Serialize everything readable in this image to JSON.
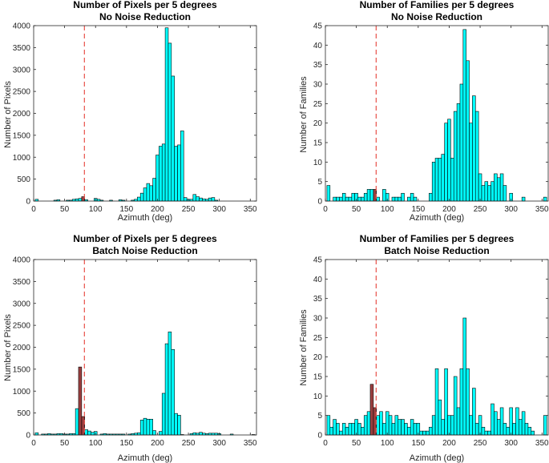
{
  "colors": {
    "bar": "#00ffff",
    "highlight": "#9e4040",
    "edge": "#000000",
    "ref_line": "#e8524a"
  },
  "chart_data": [
    {
      "type": "bar",
      "title": "Number of Pixels per 5 degrees",
      "subtitle": "No Noise Reduction",
      "xlabel": "Azimuth (deg)",
      "ylabel": "Number of Pixels",
      "xlim": [
        0,
        360
      ],
      "ylim": [
        0,
        4000
      ],
      "xticks": [
        "0",
        "50",
        "100",
        "150",
        "200",
        "250",
        "300",
        "350"
      ],
      "yticks": [
        "0",
        "500",
        "1000",
        "1500",
        "2000",
        "2500",
        "3000",
        "3500",
        "4000"
      ],
      "grid": false,
      "reference_line_x": 82,
      "bin_width": 5,
      "x": [
        5,
        35,
        40,
        55,
        60,
        65,
        70,
        75,
        80,
        85,
        100,
        105,
        110,
        125,
        140,
        145,
        160,
        165,
        170,
        175,
        180,
        185,
        190,
        195,
        200,
        205,
        210,
        215,
        220,
        225,
        230,
        235,
        240,
        245,
        250,
        255,
        260,
        265,
        270,
        275,
        280,
        285,
        290,
        295
      ],
      "values": [
        40,
        20,
        30,
        20,
        20,
        40,
        50,
        60,
        100,
        30,
        60,
        40,
        20,
        20,
        30,
        20,
        20,
        40,
        90,
        180,
        300,
        400,
        350,
        520,
        1050,
        1250,
        1300,
        3950,
        3600,
        2850,
        1250,
        1280,
        1600,
        80,
        40,
        40,
        150,
        100,
        70,
        50,
        40,
        70,
        80,
        20
      ],
      "highlight_x": [
        80
      ]
    },
    {
      "type": "bar",
      "title": "Number of Families per 5 degrees",
      "subtitle": "No Noise Reduction",
      "xlabel": "Azimuth (deg)",
      "ylabel": "Number of Families",
      "xlim": [
        0,
        360
      ],
      "ylim": [
        0,
        45
      ],
      "xticks": [
        "0",
        "50",
        "100",
        "150",
        "200",
        "250",
        "300",
        "350"
      ],
      "yticks": [
        "0",
        "5",
        "10",
        "15",
        "20",
        "25",
        "30",
        "35",
        "40",
        "45"
      ],
      "grid": false,
      "reference_line_x": 82,
      "bin_width": 5,
      "x": [
        5,
        15,
        20,
        25,
        30,
        35,
        40,
        45,
        50,
        55,
        60,
        65,
        70,
        75,
        80,
        85,
        95,
        100,
        110,
        115,
        120,
        125,
        135,
        140,
        145,
        170,
        175,
        180,
        185,
        190,
        195,
        200,
        205,
        210,
        215,
        220,
        225,
        230,
        235,
        240,
        245,
        250,
        255,
        260,
        265,
        270,
        275,
        280,
        285,
        290,
        300,
        320,
        355
      ],
      "values": [
        4,
        1,
        1,
        1,
        2,
        1,
        1,
        2,
        2,
        1,
        1,
        2,
        3,
        3,
        3,
        1,
        3,
        2,
        1,
        1,
        1,
        2,
        1,
        2,
        1,
        2,
        10,
        11,
        11,
        12,
        20,
        21,
        11,
        23,
        25,
        30,
        44,
        36,
        20,
        27,
        23,
        7,
        4,
        5,
        4,
        5,
        7,
        6,
        7,
        4,
        2,
        1,
        1
      ],
      "highlight_x": [
        80
      ]
    },
    {
      "type": "bar",
      "title": "Number of Pixels per 5 degrees",
      "subtitle": "Batch Noise Reduction",
      "xlabel": "Azimuth (deg)",
      "ylabel": "Number of Pixels",
      "xlim": [
        0,
        360
      ],
      "ylim": [
        0,
        4000
      ],
      "xticks": [
        "0",
        "50",
        "100",
        "150",
        "200",
        "250",
        "300",
        "350"
      ],
      "yticks": [
        "0",
        "500",
        "1000",
        "1500",
        "2000",
        "2500",
        "3000",
        "3500",
        "4000"
      ],
      "grid": false,
      "reference_line_x": 82,
      "bin_width": 5,
      "x": [
        5,
        15,
        20,
        25,
        30,
        35,
        40,
        45,
        50,
        55,
        60,
        65,
        70,
        75,
        80,
        85,
        90,
        95,
        100,
        110,
        115,
        120,
        125,
        130,
        135,
        140,
        145,
        155,
        160,
        165,
        170,
        175,
        180,
        185,
        190,
        195,
        205,
        210,
        215,
        220,
        225,
        230,
        235,
        240,
        255,
        260,
        265,
        270,
        275,
        280,
        285,
        290,
        295,
        300,
        320,
        355
      ],
      "values": [
        50,
        20,
        20,
        30,
        20,
        20,
        30,
        30,
        20,
        20,
        30,
        30,
        600,
        1550,
        420,
        120,
        90,
        60,
        80,
        20,
        30,
        20,
        20,
        20,
        20,
        20,
        20,
        20,
        30,
        40,
        50,
        340,
        380,
        360,
        360,
        100,
        80,
        950,
        2080,
        2350,
        1950,
        490,
        450,
        10,
        30,
        50,
        40,
        60,
        40,
        30,
        40,
        40,
        40,
        30,
        20,
        10
      ],
      "highlight_x": [
        75,
        80
      ]
    },
    {
      "type": "bar",
      "title": "Number of Families per 5 degrees",
      "subtitle": "Batch Noise Reduction",
      "xlabel": "Azimuth (deg)",
      "ylabel": "Number of Families",
      "xlim": [
        0,
        360
      ],
      "ylim": [
        0,
        45
      ],
      "xticks": [
        "0",
        "50",
        "100",
        "150",
        "200",
        "250",
        "300",
        "350"
      ],
      "yticks": [
        "0",
        "5",
        "10",
        "15",
        "20",
        "25",
        "30",
        "35",
        "40",
        "45"
      ],
      "grid": false,
      "reference_line_x": 82,
      "bin_width": 5,
      "x": [
        5,
        10,
        15,
        20,
        25,
        30,
        35,
        40,
        45,
        50,
        55,
        60,
        65,
        70,
        75,
        80,
        85,
        90,
        95,
        100,
        105,
        110,
        115,
        120,
        125,
        130,
        135,
        140,
        145,
        150,
        155,
        160,
        165,
        170,
        175,
        180,
        185,
        190,
        195,
        200,
        205,
        210,
        215,
        220,
        225,
        230,
        235,
        240,
        245,
        250,
        255,
        260,
        265,
        270,
        275,
        280,
        285,
        290,
        295,
        300,
        305,
        310,
        315,
        320,
        325,
        330,
        335,
        355
      ],
      "values": [
        5,
        2,
        4,
        3,
        1,
        3,
        2,
        3,
        3,
        4,
        3,
        2,
        5,
        6,
        13,
        7,
        5,
        6,
        3,
        6,
        5,
        3,
        5,
        4,
        4,
        3,
        2,
        4,
        3,
        3,
        1,
        1,
        1,
        2,
        5,
        17,
        9,
        4,
        17,
        5,
        5,
        15,
        7,
        17,
        30,
        17,
        5,
        12,
        3,
        5,
        2,
        1,
        1,
        8,
        6,
        4,
        7,
        3,
        2,
        7,
        3,
        7,
        4,
        6,
        3,
        2,
        1,
        5
      ],
      "highlight_x": [
        75,
        80
      ]
    }
  ]
}
